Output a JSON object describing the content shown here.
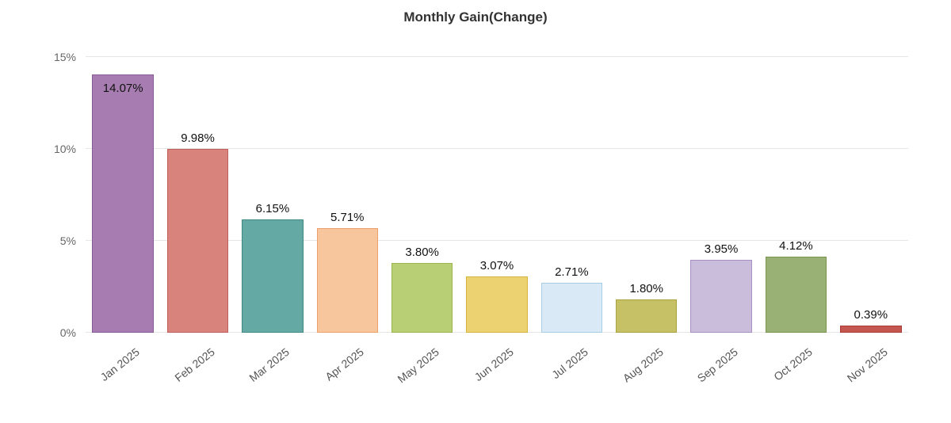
{
  "chart_data": {
    "type": "bar",
    "title": "Monthly Gain(Change)",
    "categories": [
      "Jan 2025",
      "Feb 2025",
      "Mar 2025",
      "Apr 2025",
      "May 2025",
      "Jun 2025",
      "Jul 2025",
      "Aug 2025",
      "Sep 2025",
      "Oct 2025",
      "Nov 2025"
    ],
    "values": [
      14.07,
      9.98,
      6.15,
      5.71,
      3.8,
      3.07,
      2.71,
      1.8,
      3.95,
      4.12,
      0.39
    ],
    "data_labels": [
      "14.07%",
      "9.98%",
      "6.15%",
      "5.71%",
      "3.80%",
      "3.07%",
      "2.71%",
      "1.80%",
      "3.95%",
      "4.12%",
      "0.39%"
    ],
    "xlabel": "",
    "ylabel": "",
    "ylim": [
      0,
      15
    ],
    "yticks": [
      0,
      5,
      10,
      15
    ],
    "ytick_labels": [
      "0%",
      "5%",
      "10%",
      "15%"
    ],
    "grid": true,
    "legend": false,
    "bar_colors": [
      "#a77cb0",
      "#d9837d",
      "#64a9a4",
      "#f8c69c",
      "#b9cf75",
      "#ecd271",
      "#d9eaf6",
      "#c6c167",
      "#cabddb",
      "#9ab176",
      "#c4564f"
    ],
    "bar_border_colors": [
      "#8a5a96",
      "#c05f59",
      "#3f8a84",
      "#eb9f6d",
      "#9ab54a",
      "#d4b43e",
      "#aacde6",
      "#a8a33e",
      "#a990c4",
      "#7a934f",
      "#a83c36"
    ],
    "colors": {
      "title_text": "#333333",
      "axis_text": "#666666",
      "value_label_text": "#111111",
      "gridline": "#e6e6e6",
      "background": "#ffffff"
    }
  }
}
